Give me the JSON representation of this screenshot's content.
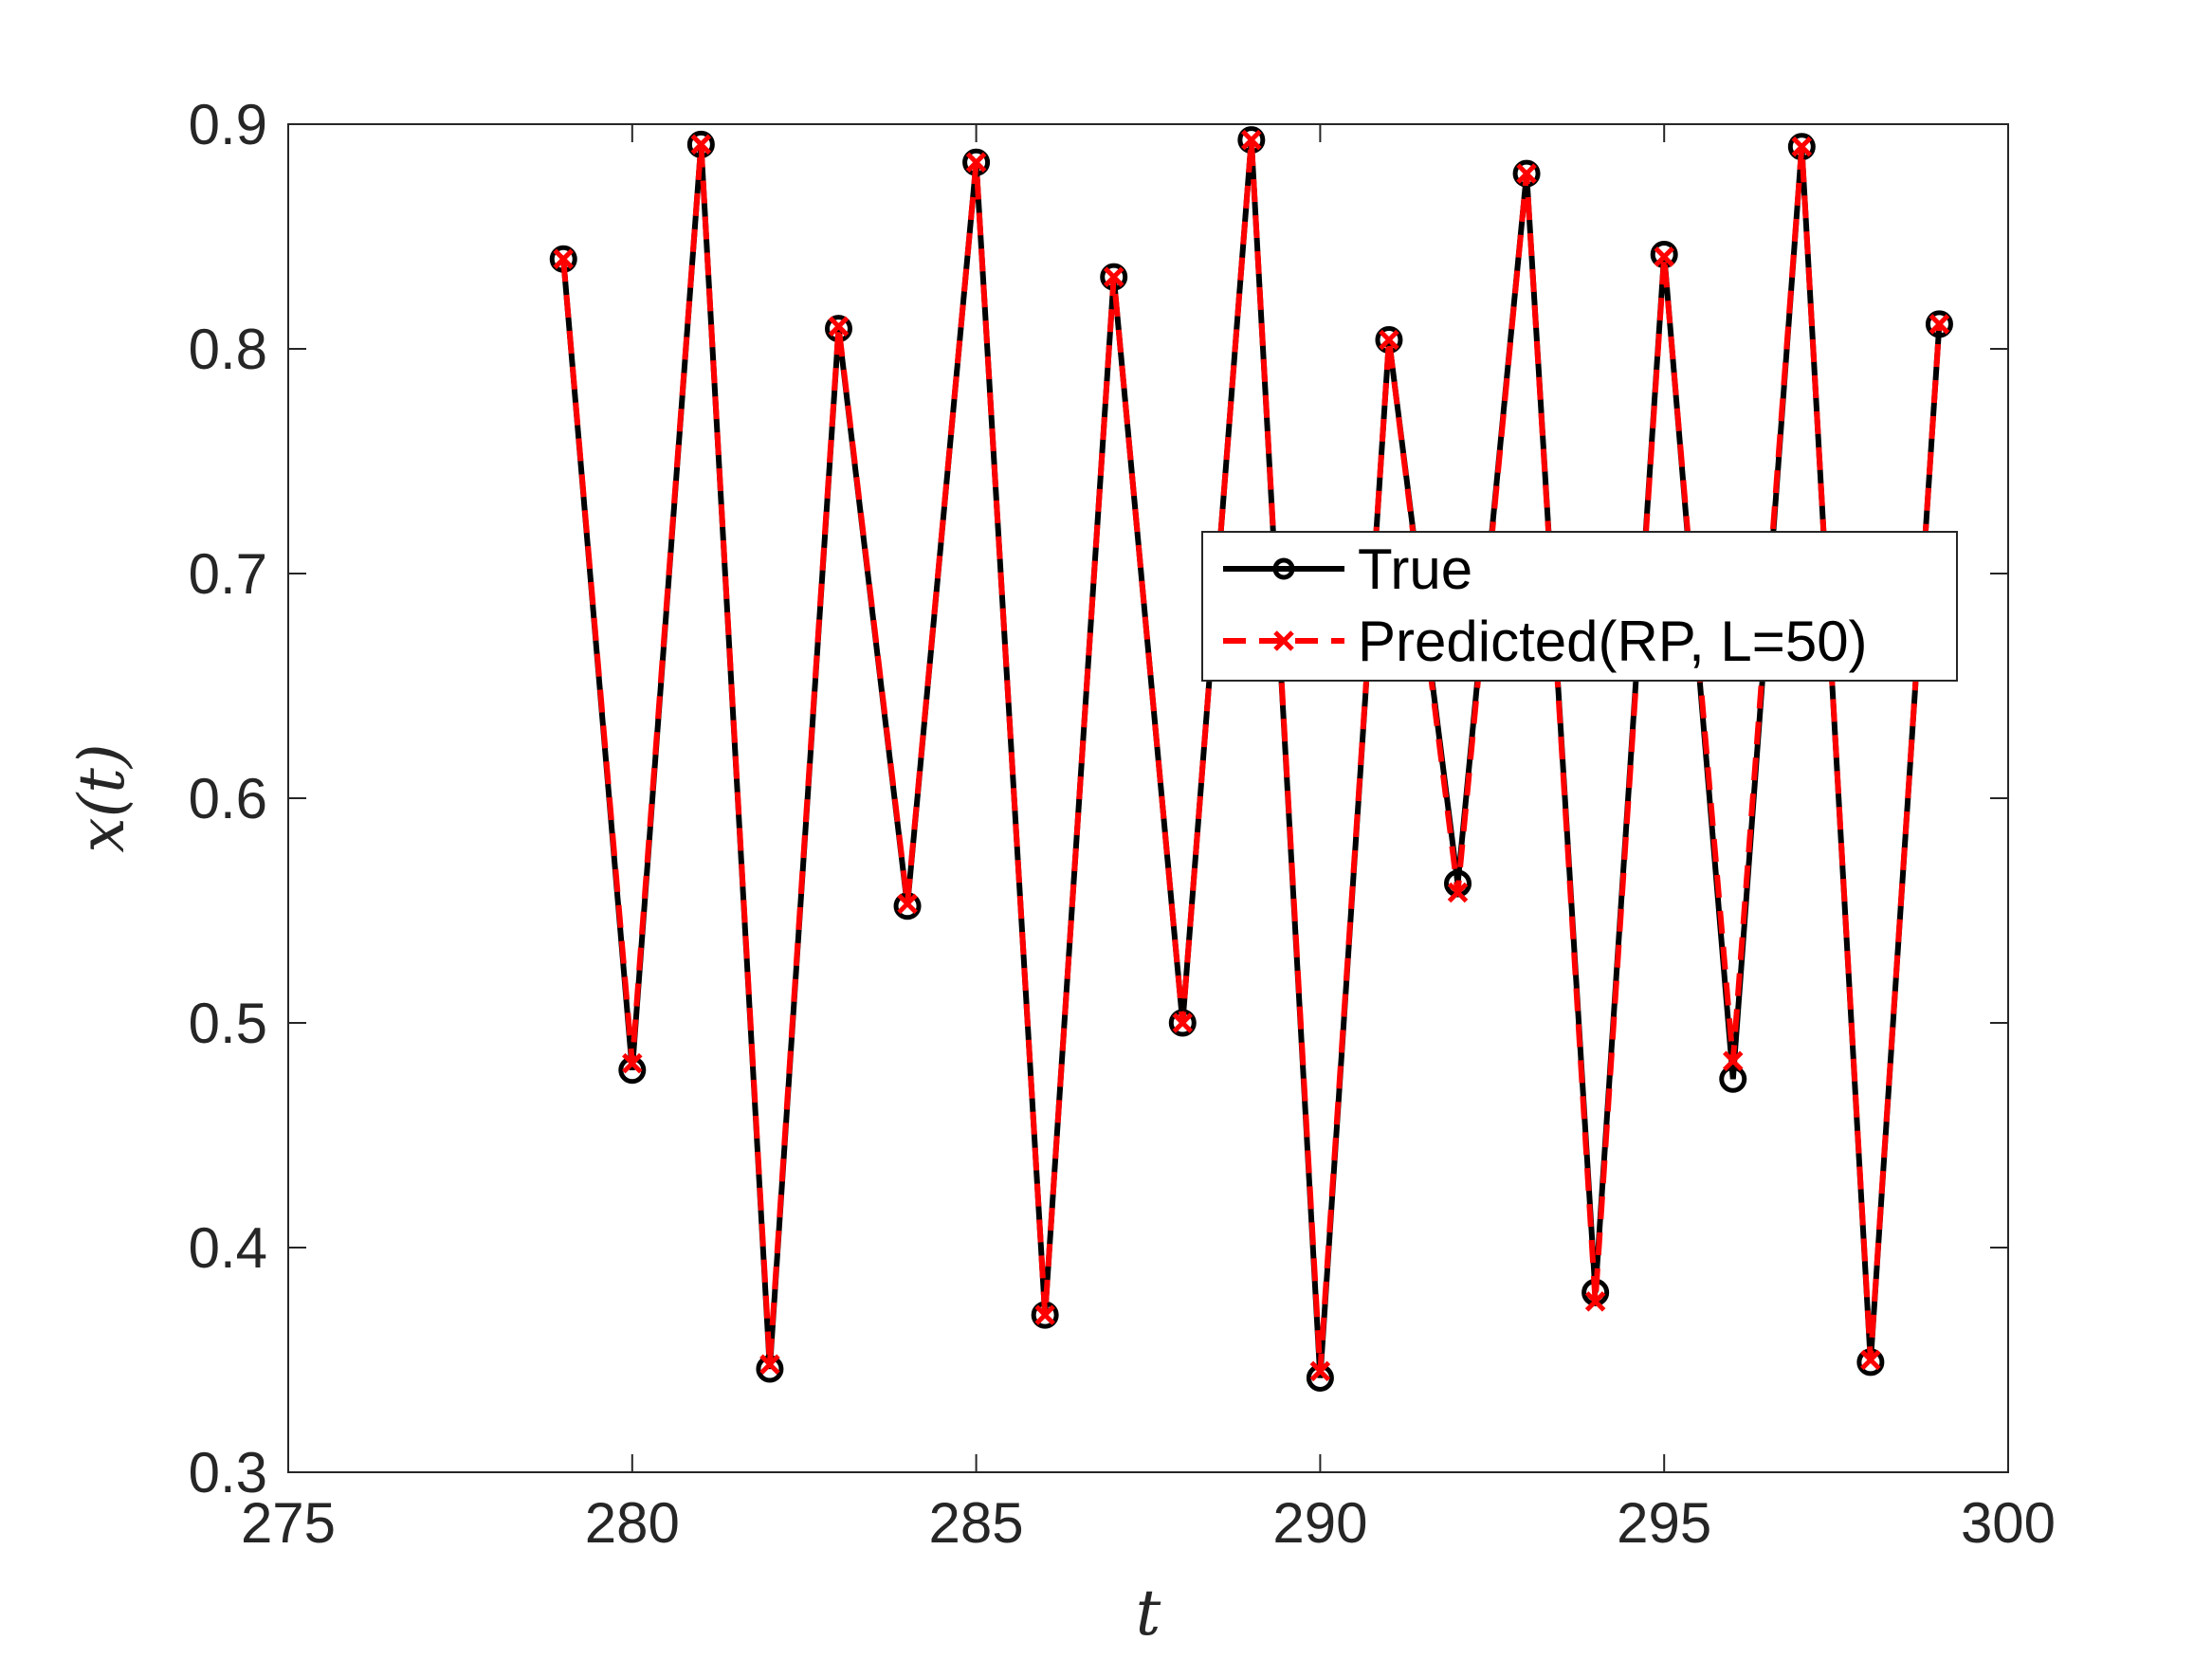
{
  "chart_data": {
    "type": "line",
    "xlabel": "t",
    "ylabel": "x(t)",
    "xlim": [
      275,
      300
    ],
    "ylim": [
      0.3,
      0.9
    ],
    "xticks": [
      "275",
      "280",
      "285",
      "290",
      "295",
      "300"
    ],
    "yticks": [
      "0.3",
      "0.4",
      "0.5",
      "0.6",
      "0.7",
      "0.8",
      "0.9"
    ],
    "grid": false,
    "legend_position": "center-right",
    "x": [
      279,
      280,
      281,
      282,
      283,
      284,
      285,
      286,
      287,
      288,
      289,
      290,
      291,
      292,
      293,
      294,
      295,
      296,
      297,
      298,
      299
    ],
    "series": [
      {
        "name": "True",
        "color": "#000000",
        "line_style": "solid",
        "marker": "circle",
        "values": [
          0.84,
          0.479,
          0.891,
          0.346,
          0.809,
          0.552,
          0.883,
          0.37,
          0.832,
          0.5,
          0.893,
          0.342,
          0.804,
          0.562,
          0.878,
          0.38,
          0.842,
          0.475,
          0.89,
          0.349,
          0.811
        ]
      },
      {
        "name": "Predicted(RP, L=50)",
        "color": "#ff0000",
        "line_style": "dashed",
        "marker": "x",
        "values": [
          0.84,
          0.482,
          0.891,
          0.348,
          0.81,
          0.553,
          0.883,
          0.37,
          0.832,
          0.5,
          0.893,
          0.345,
          0.804,
          0.558,
          0.878,
          0.376,
          0.841,
          0.483,
          0.89,
          0.35,
          0.811
        ]
      }
    ]
  }
}
